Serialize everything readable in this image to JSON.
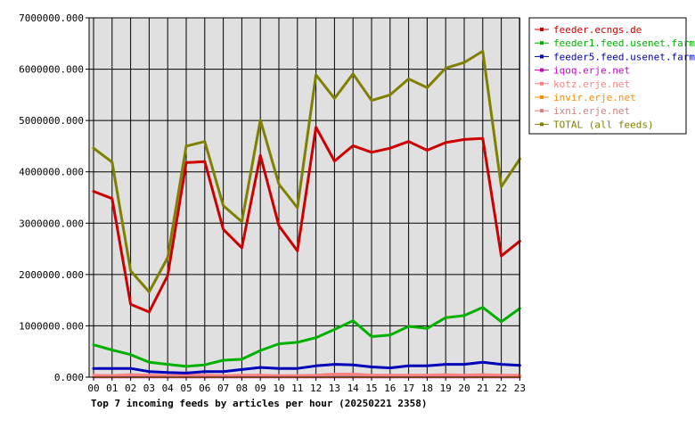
{
  "chart_data": {
    "type": "line",
    "title": "Top 7 incoming feeds by articles per hour (20250221 2358)",
    "xlabel": "",
    "ylabel": "",
    "categories": [
      "00",
      "01",
      "02",
      "03",
      "04",
      "05",
      "06",
      "07",
      "08",
      "09",
      "10",
      "11",
      "12",
      "13",
      "14",
      "15",
      "16",
      "17",
      "18",
      "19",
      "20",
      "21",
      "22",
      "23"
    ],
    "y_tick_labels": [
      "0.000",
      "1000000.000",
      "2000000.000",
      "3000000.000",
      "4000000.000",
      "5000000.000",
      "6000000.000",
      "7000000.000"
    ],
    "ylim": [
      0,
      7000000
    ],
    "grid": true,
    "legend_position": "top-right",
    "series": [
      {
        "name": "feeder.ecngs.de",
        "color": "#cc0000",
        "values": [
          3620000,
          3480000,
          1420000,
          1270000,
          1980000,
          4180000,
          4200000,
          2880000,
          2520000,
          4320000,
          2950000,
          2460000,
          4870000,
          4210000,
          4510000,
          4380000,
          4460000,
          4590000,
          4420000,
          4570000,
          4630000,
          4650000,
          2360000,
          2650000
        ]
      },
      {
        "name": "feeder1.feed.usenet.farm",
        "color": "#00b000",
        "values": [
          630000,
          530000,
          440000,
          290000,
          250000,
          210000,
          240000,
          330000,
          350000,
          520000,
          650000,
          680000,
          770000,
          930000,
          1100000,
          790000,
          820000,
          990000,
          950000,
          1160000,
          1200000,
          1360000,
          1080000,
          1340000
        ]
      },
      {
        "name": "feeder5.feed.usenet.farm",
        "color": "#0000bb",
        "values": [
          170000,
          170000,
          170000,
          110000,
          90000,
          80000,
          110000,
          110000,
          150000,
          190000,
          170000,
          170000,
          220000,
          250000,
          240000,
          200000,
          180000,
          220000,
          220000,
          250000,
          250000,
          290000,
          250000,
          230000
        ]
      },
      {
        "name": "iqoq.erje.net",
        "color": "#cc00cc",
        "values": [
          5000,
          5000,
          5000,
          5000,
          5000,
          5000,
          5000,
          5000,
          5000,
          5000,
          5000,
          5000,
          5000,
          5000,
          5000,
          5000,
          5000,
          5000,
          5000,
          5000,
          5000,
          5000,
          5000,
          5000
        ]
      },
      {
        "name": "kotz.erje.net",
        "color": "#ff8080",
        "values": [
          40000,
          30000,
          50000,
          40000,
          30000,
          40000,
          40000,
          30000,
          40000,
          40000,
          30000,
          30000,
          40000,
          60000,
          60000,
          40000,
          40000,
          40000,
          40000,
          50000,
          40000,
          50000,
          40000,
          40000
        ]
      },
      {
        "name": "invir.erje.net",
        "color": "#ff8c00",
        "values": [
          8000,
          8000,
          8000,
          8000,
          8000,
          8000,
          8000,
          8000,
          8000,
          8000,
          8000,
          8000,
          8000,
          8000,
          8000,
          8000,
          8000,
          8000,
          8000,
          8000,
          8000,
          8000,
          8000,
          8000
        ]
      },
      {
        "name": "ixni.erje.net",
        "color": "#d08080",
        "values": [
          25000,
          20000,
          25000,
          20000,
          20000,
          25000,
          25000,
          20000,
          25000,
          25000,
          20000,
          20000,
          25000,
          30000,
          30000,
          25000,
          25000,
          25000,
          25000,
          30000,
          25000,
          30000,
          25000,
          25000
        ]
      },
      {
        "name": "TOTAL (all feeds)",
        "color": "#808000",
        "values": [
          4460000,
          4190000,
          2070000,
          1660000,
          2330000,
          4500000,
          4590000,
          3340000,
          3030000,
          5010000,
          3760000,
          3300000,
          5890000,
          5430000,
          5910000,
          5390000,
          5500000,
          5810000,
          5640000,
          6020000,
          6130000,
          6350000,
          3710000,
          4250000
        ]
      }
    ]
  }
}
